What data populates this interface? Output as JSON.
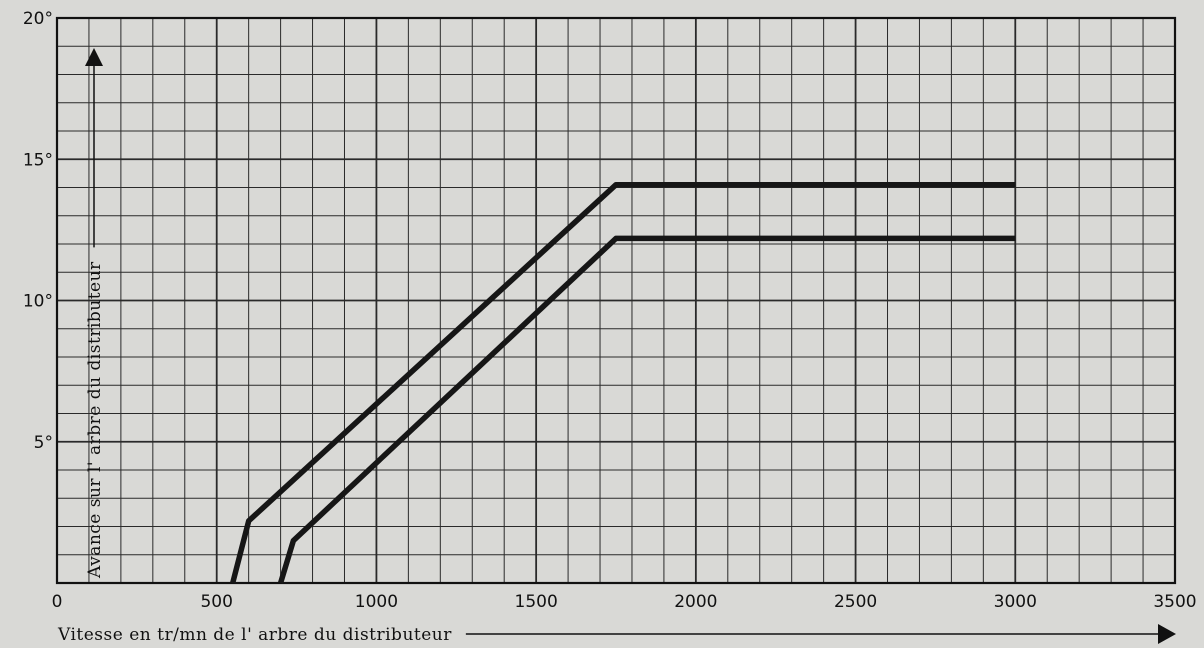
{
  "chart_data": {
    "type": "line",
    "xlabel": "Vitesse en tr/mn de l' arbre du distributeur",
    "ylabel": "Avance sur l' arbre du distributeur",
    "xlim": [
      0,
      3500
    ],
    "ylim": [
      0,
      20
    ],
    "xticks": [
      0,
      500,
      1000,
      1500,
      2000,
      2500,
      3000,
      3500
    ],
    "yticks": [
      5,
      10,
      15,
      20
    ],
    "ytick_labels": [
      "5°",
      "10°",
      "15°",
      "20°"
    ],
    "grid": true,
    "minor_grid": {
      "x_step": 100,
      "y_step": 1
    },
    "series": [
      {
        "x": [
          550,
          600,
          1750,
          3000
        ],
        "y": [
          0,
          2.2,
          14.1,
          14.1
        ]
      },
      {
        "x": [
          700,
          740,
          1750,
          3000
        ],
        "y": [
          0,
          1.5,
          12.2,
          12.2
        ]
      }
    ],
    "colors": {
      "background": "#d9d9d6",
      "grid": "#2a2a2a",
      "line": "#161616"
    }
  }
}
